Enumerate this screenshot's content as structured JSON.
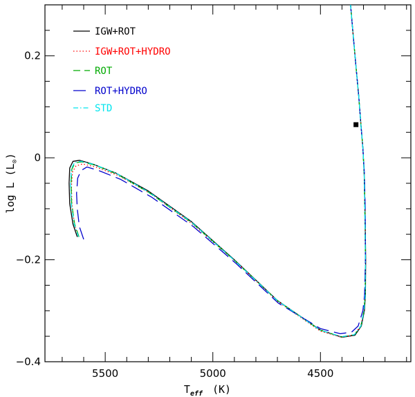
{
  "chart_data": {
    "type": "line",
    "xlabel": {
      "main": "T",
      "sub": "eff",
      "unit": "(K)"
    },
    "ylabel": {
      "main": "log L (L",
      "symbol": "⊙",
      "close": ")"
    },
    "xlim": [
      5780,
      4080
    ],
    "ylim": [
      -0.4,
      0.3
    ],
    "x_ticks": [
      5500,
      5000,
      4500
    ],
    "y_ticks": [
      0.2,
      0,
      -0.2,
      -0.4
    ],
    "x_tick_labels": [
      "5500",
      "5000",
      "4500"
    ],
    "y_tick_labels": [
      "0.2",
      "0",
      "−0.2",
      "−0.4"
    ],
    "grid": false,
    "legend_position": "top-left",
    "marker": {
      "x": 4335,
      "y": 0.065,
      "shape": "square"
    },
    "series": [
      {
        "name": "IGW+ROT",
        "color": "#000000",
        "dash": "",
        "x": [
          5630,
          5650,
          5665,
          5668,
          5665,
          5650,
          5620,
          5560,
          5450,
          5300,
          5100,
          4900,
          4700,
          4500,
          4400,
          4340,
          4310,
          4296,
          4291,
          4290,
          4293,
          4297,
          4303,
          4312,
          4322,
          4335,
          4350,
          4362
        ],
        "y": [
          -0.155,
          -0.13,
          -0.09,
          -0.05,
          -0.02,
          -0.007,
          -0.005,
          -0.012,
          -0.03,
          -0.065,
          -0.125,
          -0.2,
          -0.28,
          -0.338,
          -0.352,
          -0.348,
          -0.33,
          -0.3,
          -0.27,
          -0.2,
          -0.1,
          -0.03,
          0.02,
          0.065,
          0.12,
          0.18,
          0.25,
          0.31
        ]
      },
      {
        "name": "IGW+ROT+HYDRO",
        "color": "#ff0000",
        "dash": "1.5 3",
        "x": [
          5625,
          5643,
          5655,
          5657,
          5652,
          5636,
          5605,
          5545,
          5438,
          5290,
          5094,
          4896,
          4698,
          4500,
          4402,
          4343,
          4313,
          4299,
          4293,
          4291,
          4294,
          4297,
          4303,
          4312,
          4322,
          4335,
          4350,
          4362
        ],
        "y": [
          -0.155,
          -0.13,
          -0.09,
          -0.055,
          -0.028,
          -0.016,
          -0.012,
          -0.018,
          -0.035,
          -0.07,
          -0.13,
          -0.203,
          -0.282,
          -0.34,
          -0.352,
          -0.347,
          -0.33,
          -0.3,
          -0.27,
          -0.2,
          -0.1,
          -0.03,
          0.02,
          0.065,
          0.12,
          0.18,
          0.25,
          0.31
        ]
      },
      {
        "name": "ROT",
        "color": "#00aa00",
        "dash": "10 6",
        "x": [
          5622,
          5642,
          5656,
          5659,
          5655,
          5640,
          5610,
          5550,
          5445,
          5297,
          5099,
          4900,
          4701,
          4502,
          4402,
          4342,
          4312,
          4298,
          4292,
          4291,
          4294,
          4297,
          4303,
          4312,
          4322,
          4335,
          4350,
          4362
        ],
        "y": [
          -0.155,
          -0.13,
          -0.09,
          -0.05,
          -0.022,
          -0.01,
          -0.008,
          -0.014,
          -0.032,
          -0.068,
          -0.127,
          -0.201,
          -0.28,
          -0.338,
          -0.351,
          -0.347,
          -0.33,
          -0.3,
          -0.27,
          -0.2,
          -0.1,
          -0.03,
          0.02,
          0.065,
          0.12,
          0.18,
          0.25,
          0.31
        ]
      },
      {
        "name": "ROT+HYDRO",
        "color": "#0000cc",
        "dash": "18 8",
        "x": [
          5600,
          5620,
          5630,
          5633,
          5628,
          5612,
          5585,
          5530,
          5430,
          5285,
          5090,
          4893,
          4696,
          4500,
          4408,
          4355,
          4325,
          4303,
          4295,
          4291,
          4292,
          4296,
          4303,
          4312,
          4322,
          4335,
          4350,
          4362
        ],
        "y": [
          -0.16,
          -0.135,
          -0.1,
          -0.07,
          -0.04,
          -0.025,
          -0.018,
          -0.025,
          -0.042,
          -0.077,
          -0.135,
          -0.207,
          -0.285,
          -0.335,
          -0.345,
          -0.342,
          -0.33,
          -0.3,
          -0.27,
          -0.2,
          -0.1,
          -0.03,
          0.02,
          0.065,
          0.12,
          0.18,
          0.25,
          0.31
        ]
      },
      {
        "name": "STD",
        "color": "#00e5ee",
        "dash": "7 3 1.5 3",
        "x": [
          5624,
          5644,
          5658,
          5661,
          5657,
          5642,
          5612,
          5552,
          5446,
          5298,
          5100,
          4900,
          4701,
          4502,
          4401,
          4342,
          4312,
          4298,
          4292,
          4291,
          4294,
          4297,
          4303,
          4312,
          4322,
          4335,
          4350,
          4362
        ],
        "y": [
          -0.155,
          -0.13,
          -0.09,
          -0.05,
          -0.021,
          -0.009,
          -0.007,
          -0.013,
          -0.031,
          -0.067,
          -0.126,
          -0.201,
          -0.28,
          -0.338,
          -0.351,
          -0.347,
          -0.33,
          -0.3,
          -0.27,
          -0.2,
          -0.1,
          -0.03,
          0.02,
          0.065,
          0.12,
          0.18,
          0.25,
          0.31
        ]
      }
    ]
  }
}
